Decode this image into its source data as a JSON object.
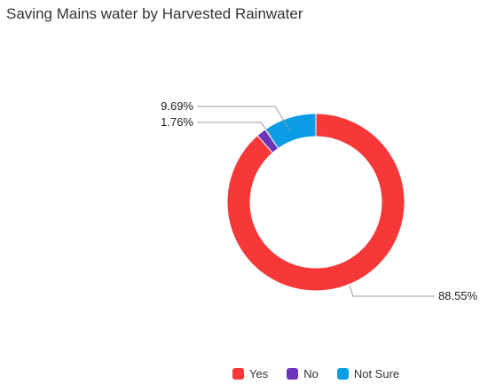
{
  "chart_data": {
    "type": "pie",
    "subtype": "donut",
    "title": "Saving Mains water by Harvested Rainwater",
    "categories": [
      "Yes",
      "No",
      "Not Sure"
    ],
    "values": [
      88.55,
      1.76,
      9.69
    ],
    "data_labels": [
      "88.55%",
      "1.76%",
      "9.69%"
    ],
    "colors": [
      "#f63838",
      "#6a35b8",
      "#0b9ce6"
    ],
    "legend": {
      "position": "bottom-right",
      "items": [
        {
          "label": "Yes",
          "color": "#f63838"
        },
        {
          "label": "No",
          "color": "#6a35b8"
        },
        {
          "label": "Not Sure",
          "color": "#0b9ce6"
        }
      ]
    },
    "grid": false
  }
}
